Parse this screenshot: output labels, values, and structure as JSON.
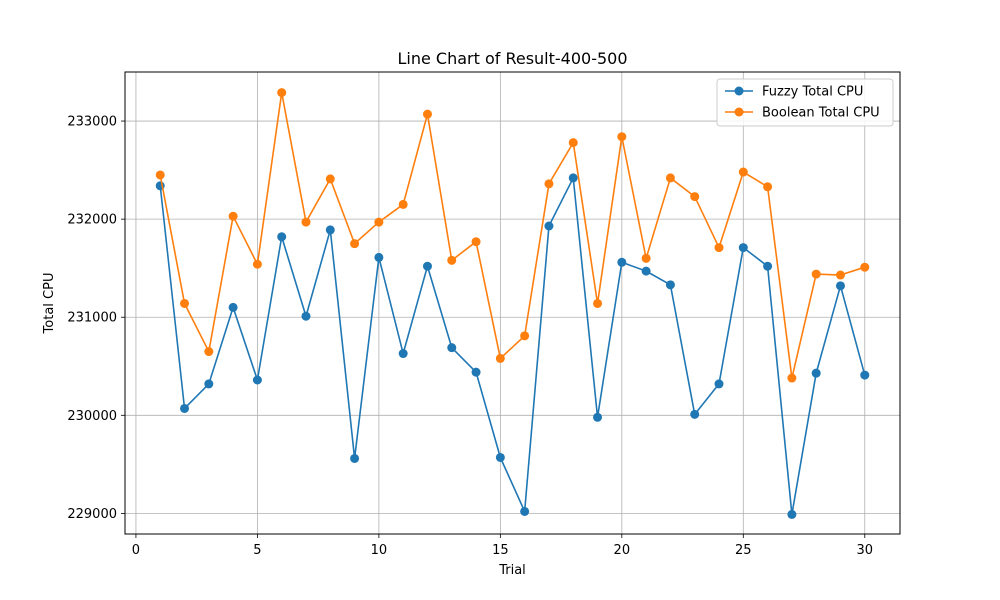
{
  "chart_data": {
    "type": "line",
    "title": "Line Chart of Result-400-500",
    "xlabel": "Trial",
    "ylabel": "Total CPU",
    "xlim": [
      -0.45,
      31.45
    ],
    "ylim": [
      228790,
      233500
    ],
    "xticks": [
      0,
      5,
      10,
      15,
      20,
      25,
      30
    ],
    "yticks": [
      229000,
      230000,
      231000,
      232000,
      233000
    ],
    "grid": true,
    "legend_position": "top-right",
    "x": [
      1,
      2,
      3,
      4,
      5,
      6,
      7,
      8,
      9,
      10,
      11,
      12,
      13,
      14,
      15,
      16,
      17,
      18,
      19,
      20,
      21,
      22,
      23,
      24,
      25,
      26,
      27,
      28,
      29,
      30
    ],
    "series": [
      {
        "name": "Fuzzy Total CPU",
        "color": "#1f77b4",
        "marker": "circle",
        "values": [
          232340,
          230070,
          230320,
          231100,
          230360,
          231820,
          231010,
          231890,
          229560,
          231610,
          230630,
          231520,
          230690,
          230440,
          229570,
          229020,
          231930,
          232420,
          229980,
          231560,
          231470,
          231330,
          230010,
          230320,
          231710,
          231520,
          228990,
          230430,
          231320,
          230410
        ]
      },
      {
        "name": "Boolean Total CPU",
        "color": "#ff7f0e",
        "marker": "circle",
        "values": [
          232450,
          231140,
          230650,
          232030,
          231540,
          233290,
          231970,
          232410,
          231750,
          231970,
          232150,
          233070,
          231580,
          231770,
          230580,
          230810,
          232360,
          232780,
          231140,
          232840,
          231600,
          232420,
          232230,
          231710,
          232480,
          232330,
          230380,
          231440,
          231430,
          231510
        ]
      }
    ]
  }
}
